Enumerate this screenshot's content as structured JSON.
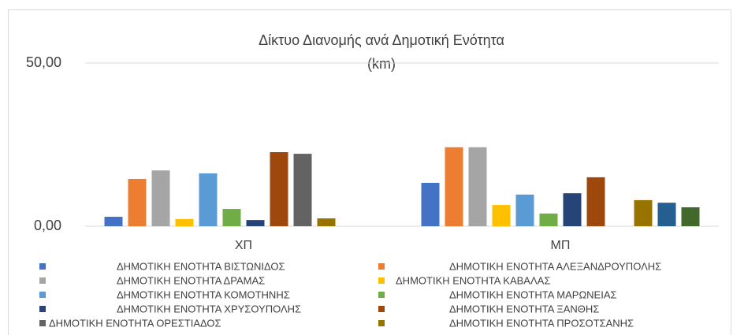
{
  "chart_data": {
    "type": "bar",
    "title": [
      "Δίκτυο Διανομής ανά Δημοτική Ενότητα",
      "(km)"
    ],
    "categories": [
      "ΧΠ",
      "ΜΠ"
    ],
    "ylim": [
      0,
      50
    ],
    "yticks": [
      {
        "value": 0,
        "label": "0,00"
      },
      {
        "value": 50,
        "label": "50,00"
      }
    ],
    "grid": true,
    "legend": "bottom",
    "series": [
      {
        "name": "ΔΗΜΟΤΙΚΗ ΕΝΟΤΗΤΑ ΒΙΣΤΩΝΙΔΟΣ",
        "color": "#4472c4",
        "values": [
          2.9,
          13.3
        ]
      },
      {
        "name": "ΔΗΜΟΤΙΚΗ ΕΝΟΤΗΤΑ ΑΛΕΞΑΝΔΡΟΥΠΟΛΗΣ",
        "color": "#ed7d31",
        "values": [
          14.5,
          24.2
        ]
      },
      {
        "name": "ΔΗΜΟΤΙΚΗ ΕΝΟΤΗΤΑ ΔΡΑΜΑΣ",
        "color": "#a5a5a5",
        "values": [
          17.1,
          24.2
        ]
      },
      {
        "name": "ΔΗΜΟΤΙΚΗ ΕΝΟΤΗΤΑ ΚΑΒΑΛΑΣ",
        "color": "#ffc000",
        "values": [
          2.2,
          6.5
        ]
      },
      {
        "name": "ΔΗΜΟΤΙΚΗ ΕΝΟΤΗΤΑ ΚΟΜΟΤΗΝΗΣ",
        "color": "#5b9bd5",
        "values": [
          16.2,
          9.7
        ]
      },
      {
        "name": "ΔΗΜΟΤΙΚΗ ΕΝΟΤΗΤΑ ΜΑΡΩΝΕΙΑΣ",
        "color": "#70ad47",
        "values": [
          5.3,
          3.9
        ]
      },
      {
        "name": "ΔΗΜΟΤΙΚΗ ΕΝΟΤΗΤΑ ΧΡΥΣΟΥΠΟΛΗΣ",
        "color": "#264478",
        "values": [
          1.9,
          10.1
        ]
      },
      {
        "name": "ΔΗΜΟΤΙΚΗ ΕΝΟΤΗΤΑ ΞΑΝΘΗΣ",
        "color": "#9e480e",
        "values": [
          22.7,
          15.0
        ]
      },
      {
        "name": "ΔΗΜΟΤΙΚΗ ΕΝΟΤΗΤΑ ΟΡΕΣΤΙΑΔΟΣ",
        "color": "#636363",
        "values": [
          22.2,
          null
        ]
      },
      {
        "name": "ΔΗΜΟΤΙΚΗ ΕΝΟΤΗΤΑ ΠΡΟΣΟΤΣΑΝΗΣ",
        "color": "#997300",
        "values": [
          2.4,
          8.0
        ]
      },
      {
        "color": "#255e91",
        "values": [
          null,
          7.2
        ]
      },
      {
        "color": "#43682b",
        "values": [
          null,
          5.8
        ]
      }
    ]
  }
}
